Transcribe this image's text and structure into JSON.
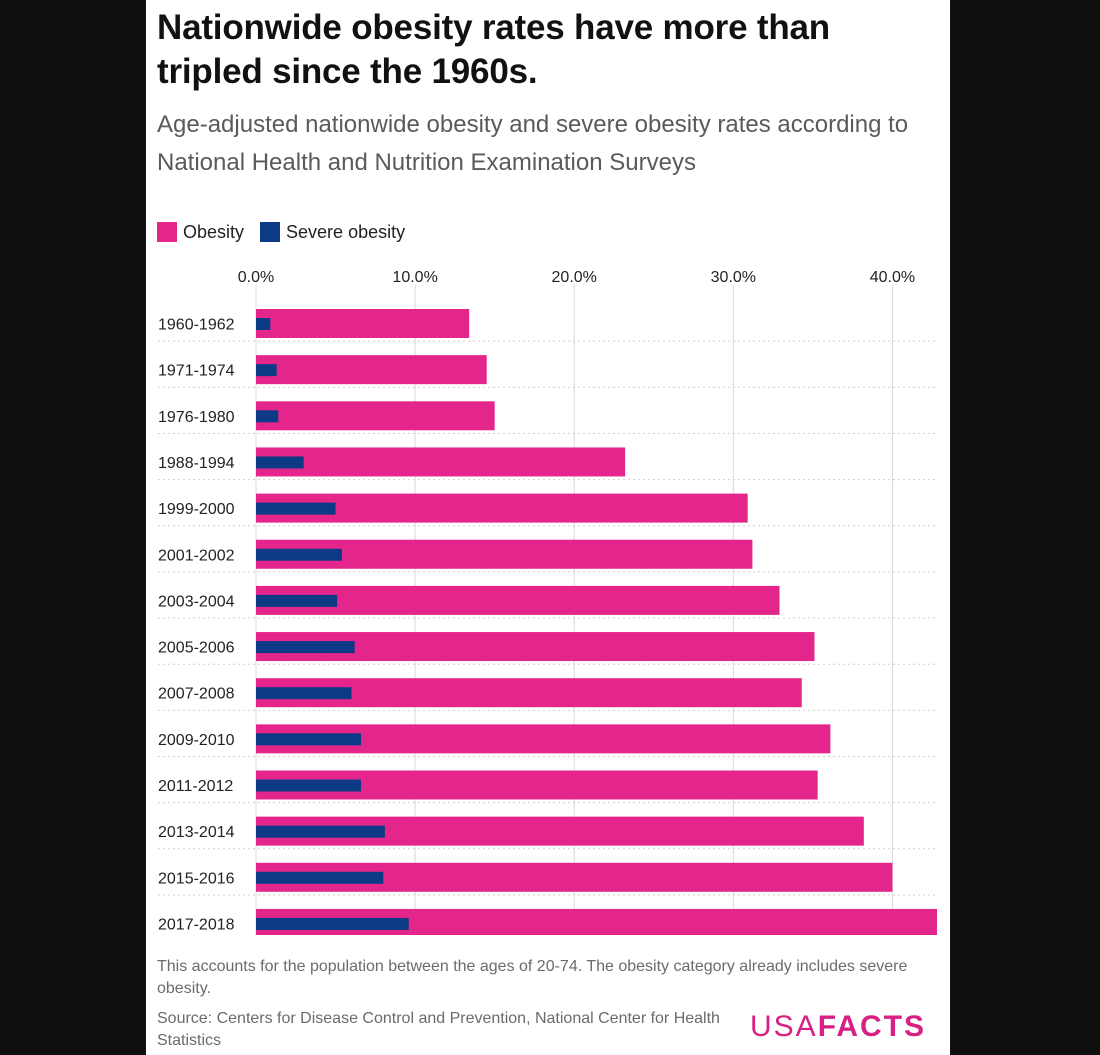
{
  "colors": {
    "obesity": "#e4268c",
    "severe_obesity": "#0d3a85",
    "grid": "#d9d9d9",
    "brand": "#d71f84"
  },
  "title": "Nationwide obesity rates have more than tripled since the 1960s.",
  "subtitle": "Age-adjusted nationwide obesity and severe obesity rates according to National Health and Nutrition Examination Surveys",
  "note": "This accounts for the population between the ages of 20-74. The obesity category already includes severe obesity.",
  "source": "Source: Centers for Disease Control and Prevention, National Center for Health Statistics",
  "logo": {
    "part1": "USA",
    "part2": "FACTS"
  },
  "chart_data": {
    "type": "bar",
    "orientation": "horizontal",
    "title": "Nationwide obesity rates have more than tripled since the 1960s.",
    "subtitle": "Age-adjusted nationwide obesity and severe obesity rates according to National Health and Nutrition Examination Surveys",
    "xlabel": "",
    "ylabel": "",
    "xlim": [
      0,
      42.8
    ],
    "x_ticks": [
      0,
      10,
      20,
      30,
      40
    ],
    "x_tick_labels": [
      "0.0%",
      "10.0%",
      "20.0%",
      "30.0%",
      "40.0%"
    ],
    "grid": true,
    "legend_position": "top-left",
    "categories": [
      "1960-1962",
      "1971-1974",
      "1976-1980",
      "1988-1994",
      "1999-2000",
      "2001-2002",
      "2003-2004",
      "2005-2006",
      "2007-2008",
      "2009-2010",
      "2011-2012",
      "2013-2014",
      "2015-2016",
      "2017-2018"
    ],
    "series": [
      {
        "name": "Obesity",
        "color": "#e4268c",
        "values": [
          13.4,
          14.5,
          15.0,
          23.2,
          30.9,
          31.2,
          32.9,
          35.1,
          34.3,
          36.1,
          35.3,
          38.2,
          40.0,
          42.8
        ]
      },
      {
        "name": "Severe obesity",
        "color": "#0d3a85",
        "values": [
          0.9,
          1.3,
          1.4,
          3.0,
          5.0,
          5.4,
          5.1,
          6.2,
          6.0,
          6.6,
          6.6,
          8.1,
          8.0,
          9.6
        ]
      }
    ]
  }
}
